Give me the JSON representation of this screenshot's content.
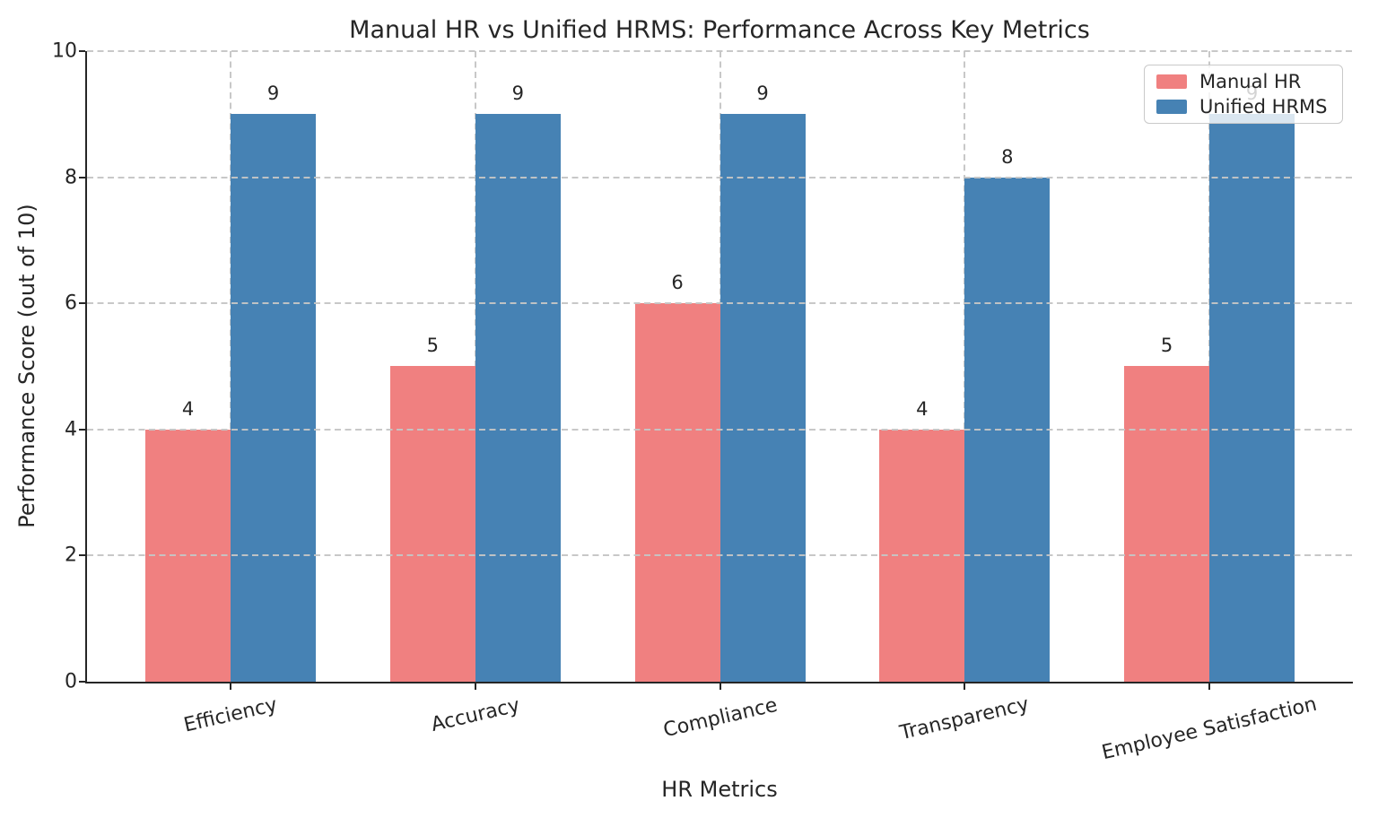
{
  "chart_data": {
    "type": "bar",
    "title": "Manual HR vs Unified HRMS: Performance Across Key Metrics",
    "xlabel": "HR Metrics",
    "ylabel": "Performance Score (out of 10)",
    "categories": [
      "Efficiency",
      "Accuracy",
      "Compliance",
      "Transparency",
      "Employee Satisfaction"
    ],
    "series": [
      {
        "name": "Manual HR",
        "color": "#F08080",
        "values": [
          4,
          5,
          6,
          4,
          5
        ]
      },
      {
        "name": "Unified HRMS",
        "color": "#4682B4",
        "values": [
          9,
          9,
          9,
          8,
          9
        ]
      }
    ],
    "ylim": [
      0,
      10
    ],
    "yticks": [
      0,
      2,
      4,
      6,
      8,
      10
    ],
    "value_labels_shown": true,
    "grid": {
      "horizontal": true,
      "vertical": true,
      "style": "dashed",
      "color": "#c5c5c5",
      "above_bars": true
    },
    "legend": {
      "position": "upper-right",
      "entries": [
        "Manual HR",
        "Unified HRMS"
      ]
    },
    "colors": {
      "text": "#262626",
      "spine": "#262626",
      "background": "#ffffff"
    }
  }
}
